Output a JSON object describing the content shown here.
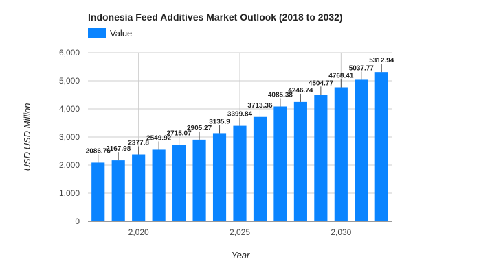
{
  "chart_data": {
    "type": "bar",
    "title": "Indonesia Feed Additives Market Outlook (2018 to 2032)",
    "xlabel": "Year",
    "ylabel": "USD USD Million",
    "legend": {
      "position": "top-left",
      "entries": [
        "Value"
      ]
    },
    "color": "#0a84ff",
    "x": [
      2018,
      2019,
      2020,
      2021,
      2022,
      2023,
      2024,
      2025,
      2026,
      2027,
      2028,
      2029,
      2030,
      2031,
      2032
    ],
    "series": [
      {
        "name": "Value",
        "values": [
          2086.76,
          2167.98,
          2377.8,
          2549.92,
          2715.07,
          2905.27,
          3135.9,
          3399.84,
          3713.36,
          4085.38,
          4246.74,
          4504.77,
          4768.41,
          5037.77,
          5312.94
        ],
        "labels": [
          "2086.76",
          "2167.98",
          "2377.8",
          "2549.92",
          "2715.07",
          "2905.27",
          "3135.9",
          "3399.84",
          "3713.36",
          "4085.38",
          "4246.74",
          "4504.77",
          "4768.41",
          "5037.77",
          "5312.94"
        ]
      }
    ],
    "ylim": [
      0,
      6000
    ],
    "y_ticks": [
      0,
      1000,
      2000,
      3000,
      4000,
      5000,
      6000
    ],
    "y_tick_labels": [
      "0",
      "1,000",
      "2,000",
      "3,000",
      "4,000",
      "5,000",
      "6,000"
    ],
    "x_ticks": [
      2020,
      2025,
      2030
    ],
    "x_tick_labels": [
      "2,020",
      "2,025",
      "2,030"
    ],
    "grid": true
  }
}
